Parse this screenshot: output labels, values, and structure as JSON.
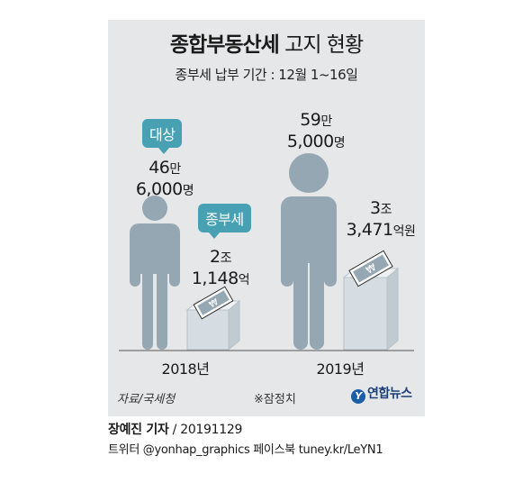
{
  "title_bold": "종합부동산세",
  "title_light": "고지 현황",
  "subtitle": "종부세 납부 기간 : 12월 1~16일",
  "callouts": {
    "target": "대상",
    "tax": "종부세"
  },
  "chart_data": {
    "type": "bar",
    "title": "종합부동산세 고지 현황",
    "categories": [
      "2018년",
      "2019년"
    ],
    "series": [
      {
        "name": "대상",
        "values": [
          466000,
          595000
        ],
        "labels": [
          [
            "46",
            "만",
            "6,000",
            "명"
          ],
          [
            "59",
            "만",
            "5,000",
            "명"
          ]
        ]
      },
      {
        "name": "종부세",
        "values": [
          21148,
          33471
        ],
        "labels": [
          [
            "2",
            "조",
            "1,148",
            "억"
          ],
          [
            "3",
            "조",
            "3,471",
            "억원"
          ]
        ]
      }
    ]
  },
  "footer": {
    "source": "자료/국세청",
    "note": "※잠정치",
    "logo": "연합뉴스",
    "logo_mark": "Y"
  },
  "credit": {
    "author": "장예진 기자",
    "date": "/ 20191129",
    "line2": "트위터 @yonhap_graphics  페이스북 tuney.kr/LeYN1"
  },
  "colors": {
    "person": "#95a7b2",
    "box": "#d5dde2",
    "accent": "#47a1b3",
    "panel": "#e6e7e8"
  }
}
